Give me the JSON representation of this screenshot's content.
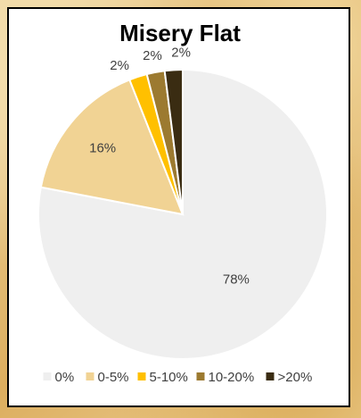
{
  "chart_data": {
    "type": "pie",
    "title": "Misery Flat",
    "categories": [
      "0%",
      "0-5%",
      "5-10%",
      "10-20%",
      ">20%"
    ],
    "values": [
      78,
      16,
      2,
      2,
      2
    ],
    "data_labels": [
      "78%",
      "16%",
      "2%",
      "2%",
      "2%"
    ],
    "colors": [
      "#efefef",
      "#f1d394",
      "#ffc000",
      "#9c7a30",
      "#3a2c12"
    ],
    "start_angle_deg": 0,
    "direction": "clockwise",
    "legend_position": "bottom"
  }
}
